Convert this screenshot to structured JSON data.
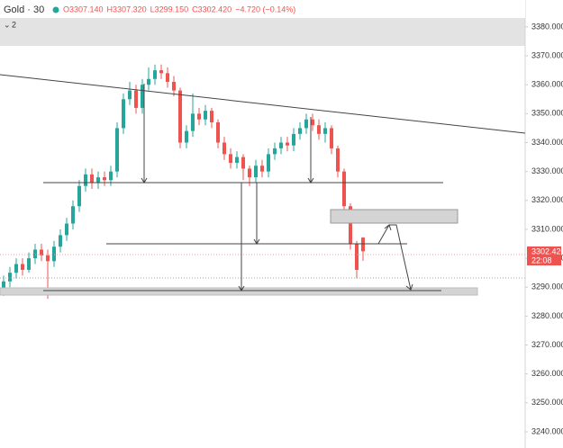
{
  "chart_data": {
    "type": "candlestick",
    "title": "Gold · 30",
    "ohlc_labels": [
      "O3307.140",
      "H3307.320",
      "L3299.150",
      "C3302.420",
      "−4.720 (−0.14%)"
    ],
    "pane_label": "2",
    "last_price_label": "3302.420",
    "countdown": "22:08",
    "up_color": "#26a69a",
    "down_color": "#ef5350",
    "categories": [
      null,
      null,
      null,
      null,
      null,
      null,
      null,
      null,
      null,
      null,
      null,
      null,
      null,
      null,
      null,
      null,
      null,
      null,
      null,
      null,
      null,
      null,
      null,
      null,
      null,
      null,
      null,
      null,
      null,
      null,
      null,
      null,
      null,
      null,
      null,
      null,
      null,
      null,
      null,
      null,
      null,
      null,
      null,
      null,
      null,
      null,
      null,
      null,
      null,
      null,
      null,
      null,
      null,
      null,
      null,
      null,
      null,
      null
    ],
    "open": [
      3289,
      3292,
      3295,
      3298,
      3296,
      3300,
      3303,
      3301,
      3299,
      3304,
      3308,
      3312,
      3318,
      3325,
      3329,
      3326,
      3328,
      3327,
      3330,
      3345,
      3355,
      3358,
      3352,
      3360,
      3362,
      3365,
      3364,
      3361,
      3358,
      3340,
      3344,
      3350,
      3348,
      3351,
      3347,
      3340,
      3336,
      3333,
      3335,
      3331,
      3328,
      3332,
      3330,
      3336,
      3338,
      3340,
      3339,
      3343,
      3345,
      3348,
      3346,
      3343,
      3345,
      3338,
      3330,
      3318,
      3305,
      3307.14
    ],
    "high": [
      3294,
      3297,
      3300,
      3300,
      3302,
      3305,
      3305,
      3303,
      3306,
      3310,
      3314,
      3320,
      3327,
      3331,
      3331,
      3330,
      3330,
      3332,
      3347,
      3357,
      3361,
      3360,
      3362,
      3366,
      3367,
      3367,
      3366,
      3363,
      3359,
      3346,
      3357,
      3352,
      3353,
      3352,
      3348,
      3342,
      3338,
      3337,
      3336,
      3332,
      3334,
      3334,
      3338,
      3340,
      3342,
      3342,
      3345,
      3347,
      3350,
      3350,
      3348,
      3347,
      3346,
      3339,
      3331,
      3319,
      3306,
      3307.32
    ],
    "low": [
      3287,
      3290,
      3293,
      3294,
      3295,
      3298,
      3299,
      3286,
      3297,
      3302,
      3306,
      3310,
      3316,
      3323,
      3324,
      3324,
      3325,
      3325,
      3328,
      3343,
      3353,
      3350,
      3350,
      3358,
      3360,
      3362,
      3359,
      3356,
      3338,
      3338,
      3342,
      3346,
      3346,
      3345,
      3338,
      3334,
      3331,
      3331,
      3327,
      3325,
      3326,
      3328,
      3328,
      3334,
      3336,
      3337,
      3337,
      3341,
      3343,
      3344,
      3341,
      3340,
      3336,
      3328,
      3316,
      3303,
      3293,
      3299.15
    ],
    "close": [
      3292,
      3295,
      3298,
      3296,
      3300,
      3303,
      3301,
      3299,
      3304,
      3308,
      3312,
      3318,
      3325,
      3329,
      3326,
      3328,
      3327,
      3330,
      3345,
      3355,
      3358,
      3352,
      3360,
      3362,
      3365,
      3364,
      3361,
      3358,
      3340,
      3344,
      3350,
      3348,
      3351,
      3347,
      3340,
      3336,
      3333,
      3335,
      3331,
      3328,
      3332,
      3330,
      3336,
      3338,
      3340,
      3339,
      3343,
      3345,
      3348,
      3346,
      3343,
      3345,
      3338,
      3330,
      3318,
      3305,
      3296,
      3302.42
    ],
    "ylim": [
      3234.4,
      3389.3
    ],
    "yticks": [
      {
        "value": 3240,
        "label": "3240.000"
      },
      {
        "value": 3250,
        "label": "3250.000"
      },
      {
        "value": 3260,
        "label": "3260.000"
      },
      {
        "value": 3270,
        "label": "3270.000"
      },
      {
        "value": 3280,
        "label": "3280.000"
      },
      {
        "value": 3290,
        "label": "3290.000"
      },
      {
        "value": 3300,
        "label": "3300.000"
      },
      {
        "value": 3310,
        "label": "3310.000"
      },
      {
        "value": 3320,
        "label": "3320.000"
      },
      {
        "value": 3330,
        "label": "3330.000"
      },
      {
        "value": 3340,
        "label": "3340.000"
      },
      {
        "value": 3350,
        "label": "3350.000"
      },
      {
        "value": 3360,
        "label": "3360.000"
      },
      {
        "value": 3370,
        "label": "3370.000"
      },
      {
        "value": 3380,
        "label": "3380.000"
      }
    ]
  }
}
